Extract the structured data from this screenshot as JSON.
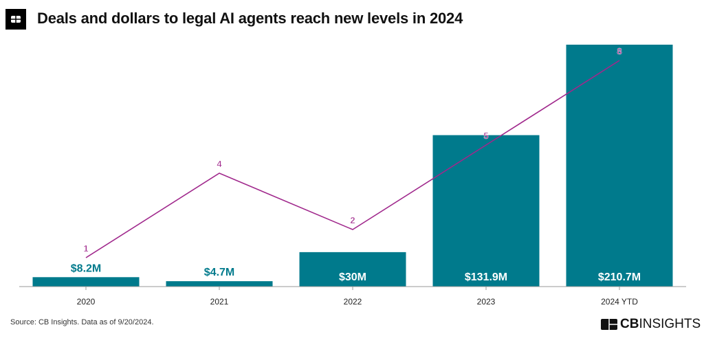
{
  "title": "Deals and dollars to legal AI agents reach new levels in 2024",
  "source": "Source: CB Insights. Data as of 9/20/2024.",
  "brand": {
    "bold": "CB",
    "rest": "INSIGHTS"
  },
  "colors": {
    "bar": "#007a8c",
    "line": "#a0288c",
    "bar_label_outside": "#007a8c",
    "bar_label_inside": "#ffffff"
  },
  "chart_data": {
    "type": "bar+line",
    "title": "Deals and dollars to legal AI agents reach new levels in 2024",
    "categories": [
      "2020",
      "2021",
      "2022",
      "2023",
      "2024 YTD"
    ],
    "series": [
      {
        "type": "bar",
        "values": [
          8.2,
          4.7,
          30,
          131.9,
          210.7
        ],
        "labels": [
          "$8.2M",
          "$4.7M",
          "$30M",
          "$131.9M",
          "$210.7M"
        ]
      },
      {
        "type": "line",
        "values": [
          1,
          4,
          2,
          5,
          8
        ],
        "labels": [
          "1",
          "4",
          "2",
          "5",
          "8"
        ]
      }
    ],
    "grid": false,
    "legend": "none"
  }
}
